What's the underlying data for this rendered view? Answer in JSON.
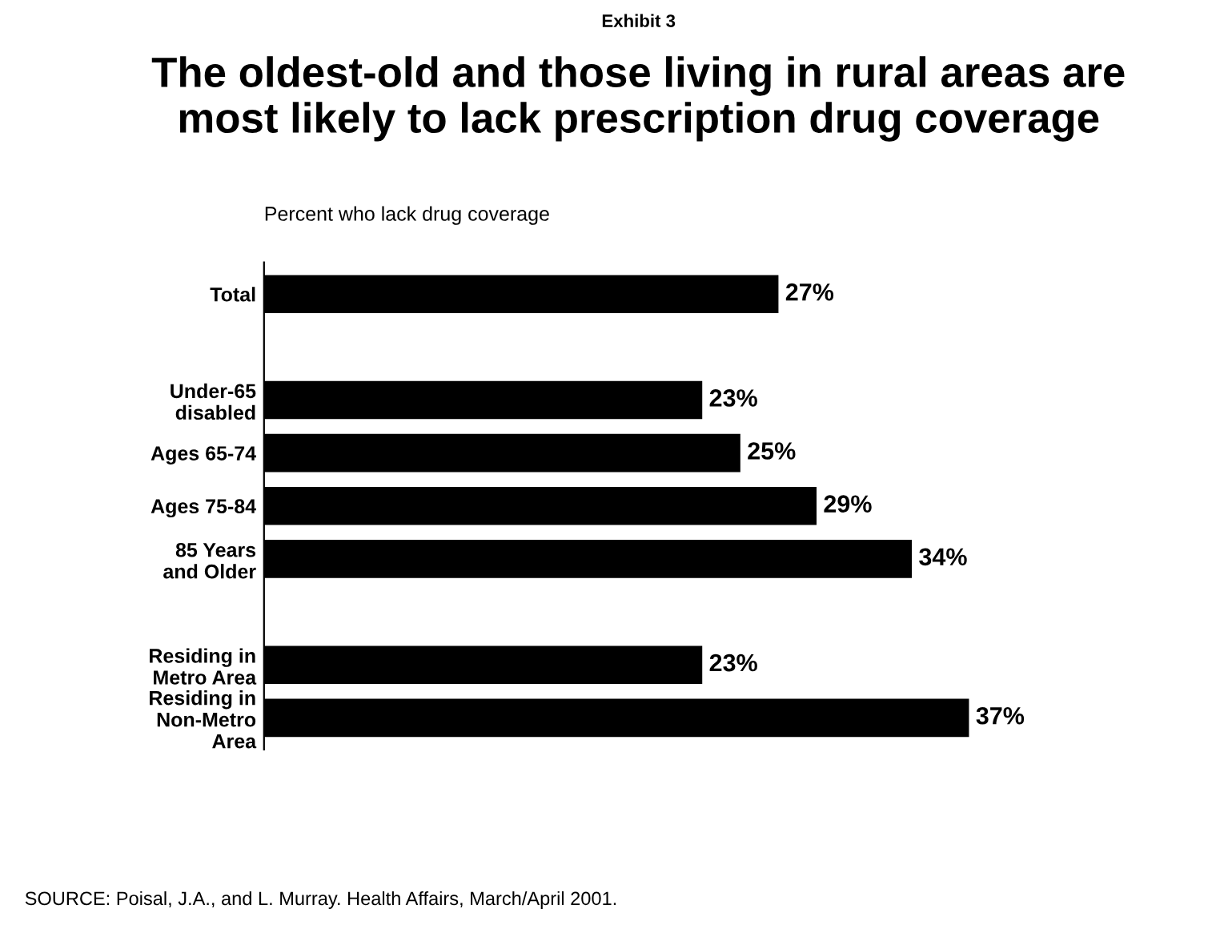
{
  "chart_data": {
    "type": "bar",
    "orientation": "horizontal",
    "title": "The oldest-old and those living in rural areas are\nmost likely to lack prescription drug coverage",
    "subtitle": "Percent who lack drug coverage",
    "categories": [
      "Total",
      null,
      "Under-65\ndisabled",
      "Ages 65-74",
      "Ages 75-84",
      "85 Years\nand Older",
      null,
      "Residing in\nMetro Area",
      "Residing in\nNon-Metro\nArea"
    ],
    "values": [
      27,
      null,
      23,
      25,
      29,
      34,
      null,
      23,
      37
    ],
    "color": "#000000",
    "data_labels": true,
    "value_labels": [
      "27%",
      null,
      "23%",
      "25%",
      "29%",
      "34%",
      null,
      "23%",
      "37%"
    ],
    "annotations": [
      "Exhibit 3",
      "SOURCE: Poisal, J.A., and L. Murray. Health Affairs, March/April 2001."
    ]
  }
}
